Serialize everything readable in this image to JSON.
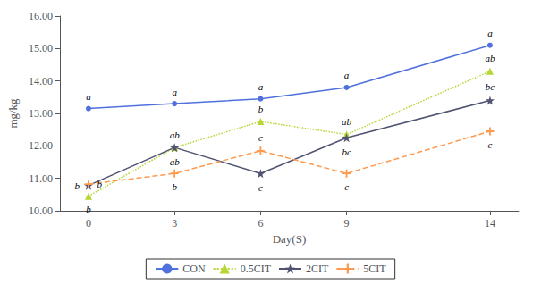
{
  "chart_data": {
    "type": "line",
    "x": [
      0,
      3,
      6,
      9,
      14
    ],
    "series": [
      {
        "name": "CON",
        "values": [
          13.15,
          13.3,
          13.45,
          13.8,
          15.1
        ],
        "annotations": [
          "a",
          "a",
          "a",
          "a",
          "a"
        ],
        "line_style": "solid",
        "marker": "circle"
      },
      {
        "name": "0.5CIT",
        "values": [
          10.45,
          11.95,
          12.75,
          12.35,
          14.3
        ],
        "annotations": [
          "b",
          "ab",
          "b",
          "ab",
          "ab"
        ],
        "line_style": "dotted",
        "marker": "triangle"
      },
      {
        "name": "2CIT",
        "values": [
          10.78,
          11.95,
          11.15,
          12.25,
          13.4
        ],
        "annotations": [
          "b",
          "ab",
          "c",
          "bc",
          "bc"
        ],
        "line_style": "solid",
        "marker": "star"
      },
      {
        "name": "5CIT",
        "values": [
          10.82,
          11.15,
          11.85,
          11.15,
          12.45
        ],
        "annotations": [
          "b",
          "b",
          "c",
          "c",
          "c"
        ],
        "line_style": "dashed",
        "marker": "plus"
      }
    ],
    "xlabel": "Day(S)",
    "ylabel": "mg/kg",
    "xlim": [
      -1,
      15
    ],
    "xticks": [
      0,
      3,
      6,
      9,
      14
    ],
    "ylim": [
      10.0,
      16.0
    ],
    "yticks": [
      {
        "value": 10.0,
        "label": "10.00"
      },
      {
        "value": 11.0,
        "label": "11.00"
      },
      {
        "value": 12.0,
        "label": "12.00"
      },
      {
        "value": 13.0,
        "label": "13.00"
      },
      {
        "value": 14.0,
        "label": "14.00"
      },
      {
        "value": 15.0,
        "label": "15.00"
      },
      {
        "value": 16.0,
        "label": "16.00"
      }
    ],
    "grid": false,
    "legend": "bottom"
  }
}
